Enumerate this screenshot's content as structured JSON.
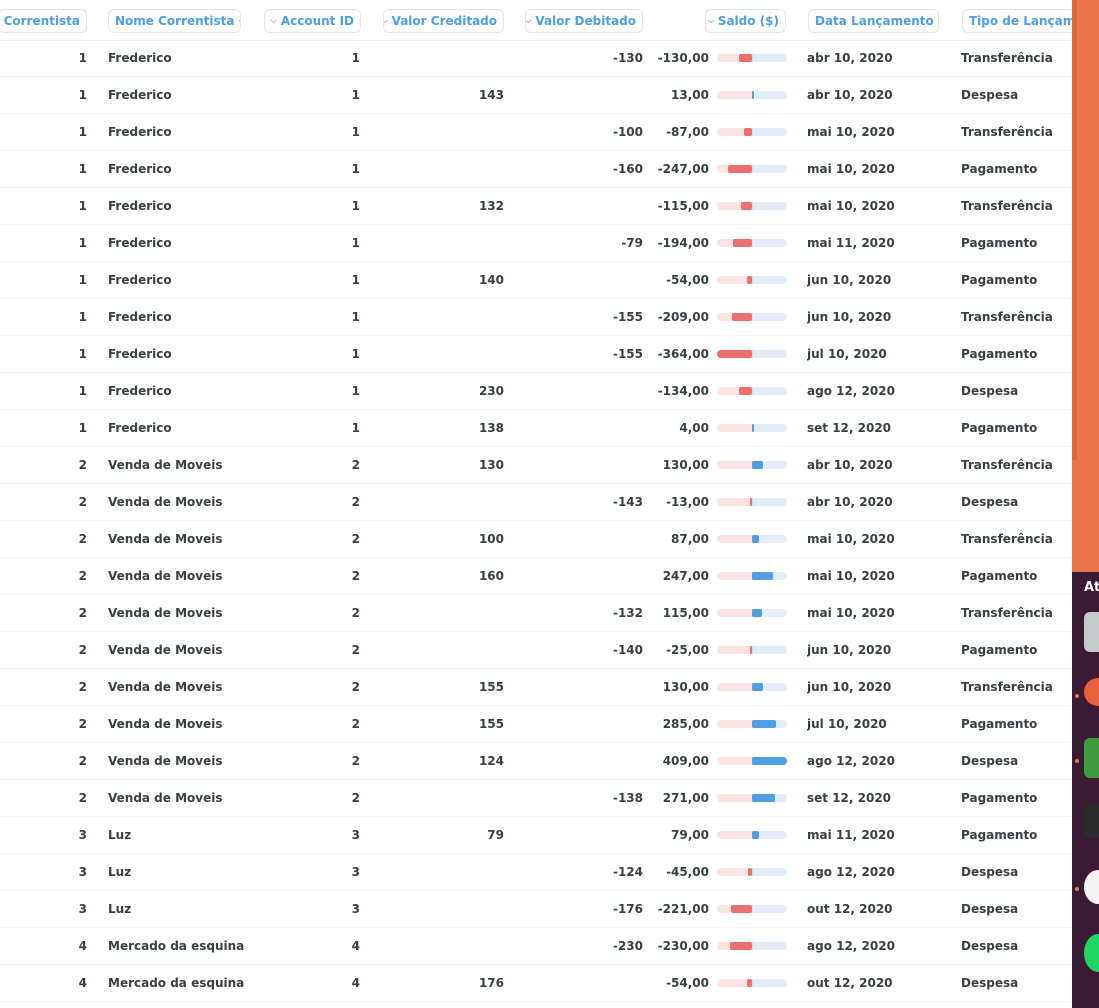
{
  "columns": [
    {
      "label": "Id Correntista",
      "align": "right"
    },
    {
      "label": "Nome Correntista",
      "align": "left"
    },
    {
      "label": "Account ID",
      "align": "right"
    },
    {
      "label": "Valor Creditado",
      "align": "right"
    },
    {
      "label": "Valor Debitado",
      "align": "right"
    },
    {
      "label": "Saldo ($)",
      "align": "right"
    },
    {
      "label": "Data Lançamento",
      "align": "left"
    },
    {
      "label": "Tipo de Lançamen",
      "align": "left"
    }
  ],
  "saldo_bar": {
    "min": -364,
    "max": 409
  },
  "rows": [
    {
      "id": "1",
      "nome": "Frederico",
      "account": "1",
      "credito": "",
      "debito": "-130",
      "saldo": "-130,00",
      "saldo_value": -130,
      "data": "abr 10, 2020",
      "tipo": "Transferência"
    },
    {
      "id": "1",
      "nome": "Frederico",
      "account": "1",
      "credito": "143",
      "debito": "",
      "saldo": "13,00",
      "saldo_value": 13,
      "data": "abr 10, 2020",
      "tipo": "Despesa"
    },
    {
      "id": "1",
      "nome": "Frederico",
      "account": "1",
      "credito": "",
      "debito": "-100",
      "saldo": "-87,00",
      "saldo_value": -87,
      "data": "mai 10, 2020",
      "tipo": "Transferência"
    },
    {
      "id": "1",
      "nome": "Frederico",
      "account": "1",
      "credito": "",
      "debito": "-160",
      "saldo": "-247,00",
      "saldo_value": -247,
      "data": "mai 10, 2020",
      "tipo": "Pagamento"
    },
    {
      "id": "1",
      "nome": "Frederico",
      "account": "1",
      "credito": "132",
      "debito": "",
      "saldo": "-115,00",
      "saldo_value": -115,
      "data": "mai 10, 2020",
      "tipo": "Transferência"
    },
    {
      "id": "1",
      "nome": "Frederico",
      "account": "1",
      "credito": "",
      "debito": "-79",
      "saldo": "-194,00",
      "saldo_value": -194,
      "data": "mai 11, 2020",
      "tipo": "Pagamento"
    },
    {
      "id": "1",
      "nome": "Frederico",
      "account": "1",
      "credito": "140",
      "debito": "",
      "saldo": "-54,00",
      "saldo_value": -54,
      "data": "jun 10, 2020",
      "tipo": "Pagamento"
    },
    {
      "id": "1",
      "nome": "Frederico",
      "account": "1",
      "credito": "",
      "debito": "-155",
      "saldo": "-209,00",
      "saldo_value": -209,
      "data": "jun 10, 2020",
      "tipo": "Transferência"
    },
    {
      "id": "1",
      "nome": "Frederico",
      "account": "1",
      "credito": "",
      "debito": "-155",
      "saldo": "-364,00",
      "saldo_value": -364,
      "data": "jul 10, 2020",
      "tipo": "Pagamento"
    },
    {
      "id": "1",
      "nome": "Frederico",
      "account": "1",
      "credito": "230",
      "debito": "",
      "saldo": "-134,00",
      "saldo_value": -134,
      "data": "ago 12, 2020",
      "tipo": "Despesa"
    },
    {
      "id": "1",
      "nome": "Frederico",
      "account": "1",
      "credito": "138",
      "debito": "",
      "saldo": "4,00",
      "saldo_value": 4,
      "data": "set 12, 2020",
      "tipo": "Pagamento"
    },
    {
      "id": "2",
      "nome": "Venda de Moveis",
      "account": "2",
      "credito": "130",
      "debito": "",
      "saldo": "130,00",
      "saldo_value": 130,
      "data": "abr 10, 2020",
      "tipo": "Transferência"
    },
    {
      "id": "2",
      "nome": "Venda de Moveis",
      "account": "2",
      "credito": "",
      "debito": "-143",
      "saldo": "-13,00",
      "saldo_value": -13,
      "data": "abr 10, 2020",
      "tipo": "Despesa"
    },
    {
      "id": "2",
      "nome": "Venda de Moveis",
      "account": "2",
      "credito": "100",
      "debito": "",
      "saldo": "87,00",
      "saldo_value": 87,
      "data": "mai 10, 2020",
      "tipo": "Transferência"
    },
    {
      "id": "2",
      "nome": "Venda de Moveis",
      "account": "2",
      "credito": "160",
      "debito": "",
      "saldo": "247,00",
      "saldo_value": 247,
      "data": "mai 10, 2020",
      "tipo": "Pagamento"
    },
    {
      "id": "2",
      "nome": "Venda de Moveis",
      "account": "2",
      "credito": "",
      "debito": "-132",
      "saldo": "115,00",
      "saldo_value": 115,
      "data": "mai 10, 2020",
      "tipo": "Transferência"
    },
    {
      "id": "2",
      "nome": "Venda de Moveis",
      "account": "2",
      "credito": "",
      "debito": "-140",
      "saldo": "-25,00",
      "saldo_value": -25,
      "data": "jun 10, 2020",
      "tipo": "Pagamento"
    },
    {
      "id": "2",
      "nome": "Venda de Moveis",
      "account": "2",
      "credito": "155",
      "debito": "",
      "saldo": "130,00",
      "saldo_value": 130,
      "data": "jun 10, 2020",
      "tipo": "Transferência"
    },
    {
      "id": "2",
      "nome": "Venda de Moveis",
      "account": "2",
      "credito": "155",
      "debito": "",
      "saldo": "285,00",
      "saldo_value": 285,
      "data": "jul 10, 2020",
      "tipo": "Pagamento"
    },
    {
      "id": "2",
      "nome": "Venda de Moveis",
      "account": "2",
      "credito": "124",
      "debito": "",
      "saldo": "409,00",
      "saldo_value": 409,
      "data": "ago 12, 2020",
      "tipo": "Despesa"
    },
    {
      "id": "2",
      "nome": "Venda de Moveis",
      "account": "2",
      "credito": "",
      "debito": "-138",
      "saldo": "271,00",
      "saldo_value": 271,
      "data": "set 12, 2020",
      "tipo": "Pagamento"
    },
    {
      "id": "3",
      "nome": "Luz",
      "account": "3",
      "credito": "79",
      "debito": "",
      "saldo": "79,00",
      "saldo_value": 79,
      "data": "mai 11, 2020",
      "tipo": "Pagamento"
    },
    {
      "id": "3",
      "nome": "Luz",
      "account": "3",
      "credito": "",
      "debito": "-124",
      "saldo": "-45,00",
      "saldo_value": -45,
      "data": "ago 12, 2020",
      "tipo": "Despesa"
    },
    {
      "id": "3",
      "nome": "Luz",
      "account": "3",
      "credito": "",
      "debito": "-176",
      "saldo": "-221,00",
      "saldo_value": -221,
      "data": "out 12, 2020",
      "tipo": "Despesa"
    },
    {
      "id": "4",
      "nome": "Mercado da esquina",
      "account": "4",
      "credito": "",
      "debito": "-230",
      "saldo": "-230,00",
      "saldo_value": -230,
      "data": "ago 12, 2020",
      "tipo": "Despesa"
    },
    {
      "id": "4",
      "nome": "Mercado da esquina",
      "account": "4",
      "credito": "176",
      "debito": "",
      "saldo": "-54,00",
      "saldo_value": -54,
      "data": "out 12, 2020",
      "tipo": "Despesa"
    }
  ],
  "dock": {
    "title": "At",
    "icons": [
      "files-icon",
      "firefox-icon",
      "spreadsheet-icon",
      "terminal-icon",
      "slack-icon",
      "spotify-icon"
    ]
  },
  "colors": {
    "accent": "#509ee3",
    "negative": "#ed6e6e",
    "desktop": "#e9774a",
    "dock": "#3b1a33"
  }
}
